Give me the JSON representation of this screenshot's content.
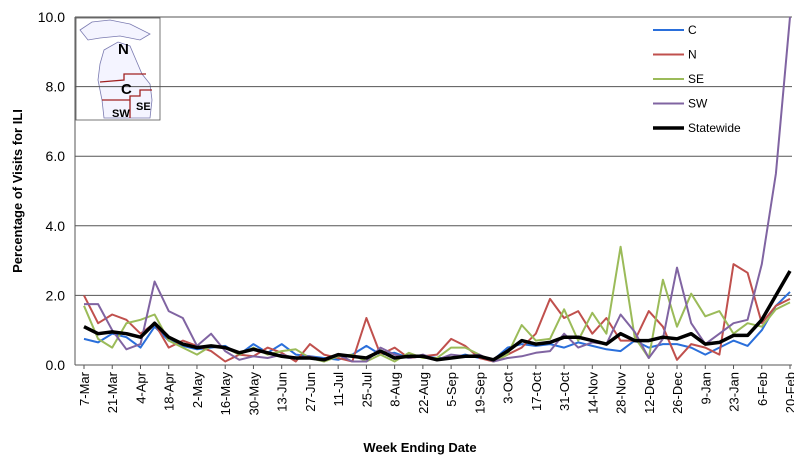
{
  "chart_data": {
    "type": "line",
    "y_label": "Percentage of Visits for ILI",
    "x_label": "Week Ending Date",
    "categories": [
      "7-Mar",
      null,
      "21-Mar",
      null,
      "4-Apr",
      null,
      "18-Apr",
      null,
      "2-May",
      null,
      "16-May",
      null,
      "30-May",
      null,
      "13-Jun",
      null,
      "27-Jun",
      null,
      "11-Jul",
      null,
      "25-Jul",
      null,
      "8-Aug",
      null,
      "22-Aug",
      null,
      "5-Sep",
      null,
      "19-Sep",
      null,
      "3-Oct",
      null,
      "17-Oct",
      null,
      "31-Oct",
      null,
      "14-Nov",
      null,
      "28-Nov",
      null,
      "12-Dec",
      null,
      "26-Dec",
      null,
      "9-Jan",
      null,
      "23-Jan",
      null,
      "6-Feb",
      null,
      "20-Feb"
    ],
    "series": [
      {
        "name": "C",
        "color": "#2a6fdb",
        "values": [
          0.75,
          0.65,
          0.9,
          0.8,
          0.5,
          1.1,
          0.7,
          0.55,
          0.45,
          0.5,
          0.55,
          0.3,
          0.6,
          0.35,
          0.6,
          0.3,
          0.25,
          0.2,
          0.15,
          0.3,
          0.55,
          0.3,
          0.35,
          0.2,
          0.25,
          0.2,
          0.2,
          0.3,
          0.2,
          0.15,
          0.5,
          0.6,
          0.55,
          0.6,
          0.5,
          0.65,
          0.55,
          0.45,
          0.4,
          0.7,
          0.5,
          0.6,
          0.6,
          0.5,
          0.3,
          0.5,
          0.7,
          0.55,
          1.0,
          1.7,
          2.1
        ]
      },
      {
        "name": "N",
        "color": "#c0504d",
        "values": [
          2.0,
          1.2,
          1.45,
          1.3,
          0.9,
          1.2,
          0.5,
          0.7,
          0.55,
          0.4,
          0.1,
          0.3,
          0.25,
          0.5,
          0.35,
          0.1,
          0.6,
          0.3,
          0.2,
          0.1,
          1.35,
          0.3,
          0.5,
          0.2,
          0.25,
          0.3,
          0.75,
          0.55,
          0.2,
          0.1,
          0.3,
          0.5,
          0.9,
          1.9,
          1.35,
          1.55,
          0.9,
          1.35,
          0.7,
          0.7,
          1.55,
          1.1,
          0.15,
          0.6,
          0.5,
          0.3,
          2.9,
          2.65,
          1.2,
          1.7,
          1.9
        ]
      },
      {
        "name": "SE",
        "color": "#9bbb59",
        "values": [
          1.7,
          0.75,
          0.5,
          1.2,
          1.3,
          1.45,
          0.7,
          0.5,
          0.3,
          0.55,
          0.5,
          0.3,
          0.5,
          0.3,
          0.4,
          0.45,
          0.2,
          0.1,
          0.25,
          0.3,
          0.1,
          0.3,
          0.1,
          0.35,
          0.2,
          0.2,
          0.5,
          0.5,
          0.3,
          0.1,
          0.3,
          1.15,
          0.7,
          0.75,
          1.6,
          0.7,
          1.5,
          0.9,
          3.4,
          0.8,
          0.2,
          2.45,
          1.1,
          2.05,
          1.4,
          1.55,
          0.9,
          1.2,
          1.1,
          1.6,
          1.8
        ]
      },
      {
        "name": "SW",
        "color": "#8064a2",
        "values": [
          1.75,
          1.75,
          1.0,
          0.45,
          0.6,
          2.4,
          1.55,
          1.35,
          0.55,
          0.9,
          0.4,
          0.15,
          0.25,
          0.2,
          0.3,
          0.2,
          0.25,
          0.15,
          0.3,
          0.1,
          0.1,
          0.5,
          0.3,
          0.2,
          0.3,
          0.15,
          0.3,
          0.25,
          0.3,
          0.1,
          0.2,
          0.25,
          0.35,
          0.4,
          0.9,
          0.5,
          0.65,
          0.6,
          1.45,
          0.95,
          0.2,
          0.75,
          2.8,
          1.2,
          0.6,
          0.9,
          1.2,
          1.3,
          2.9,
          5.5,
          10.0
        ]
      },
      {
        "name": "Statewide",
        "color": "#000000",
        "values": [
          1.1,
          0.9,
          0.95,
          0.9,
          0.8,
          1.2,
          0.8,
          0.6,
          0.5,
          0.55,
          0.5,
          0.35,
          0.45,
          0.35,
          0.25,
          0.2,
          0.2,
          0.15,
          0.3,
          0.25,
          0.2,
          0.4,
          0.2,
          0.25,
          0.25,
          0.15,
          0.2,
          0.25,
          0.25,
          0.15,
          0.4,
          0.7,
          0.6,
          0.65,
          0.8,
          0.8,
          0.7,
          0.6,
          0.9,
          0.7,
          0.7,
          0.8,
          0.75,
          0.9,
          0.6,
          0.65,
          0.85,
          0.85,
          1.3,
          2.0,
          2.7
        ]
      }
    ],
    "ylim": [
      0,
      10
    ],
    "yticks": [
      {
        "value": 0,
        "label": "0.0"
      },
      {
        "value": 2,
        "label": "2.0"
      },
      {
        "value": 4,
        "label": "4.0"
      },
      {
        "value": 6,
        "label": "6.0"
      },
      {
        "value": 8,
        "label": "8.0"
      },
      {
        "value": 10,
        "label": "10.0"
      }
    ],
    "grid": true,
    "legend": "upper right",
    "inset_map": {
      "labels": [
        "N",
        "C",
        "SE",
        "SW"
      ]
    }
  }
}
